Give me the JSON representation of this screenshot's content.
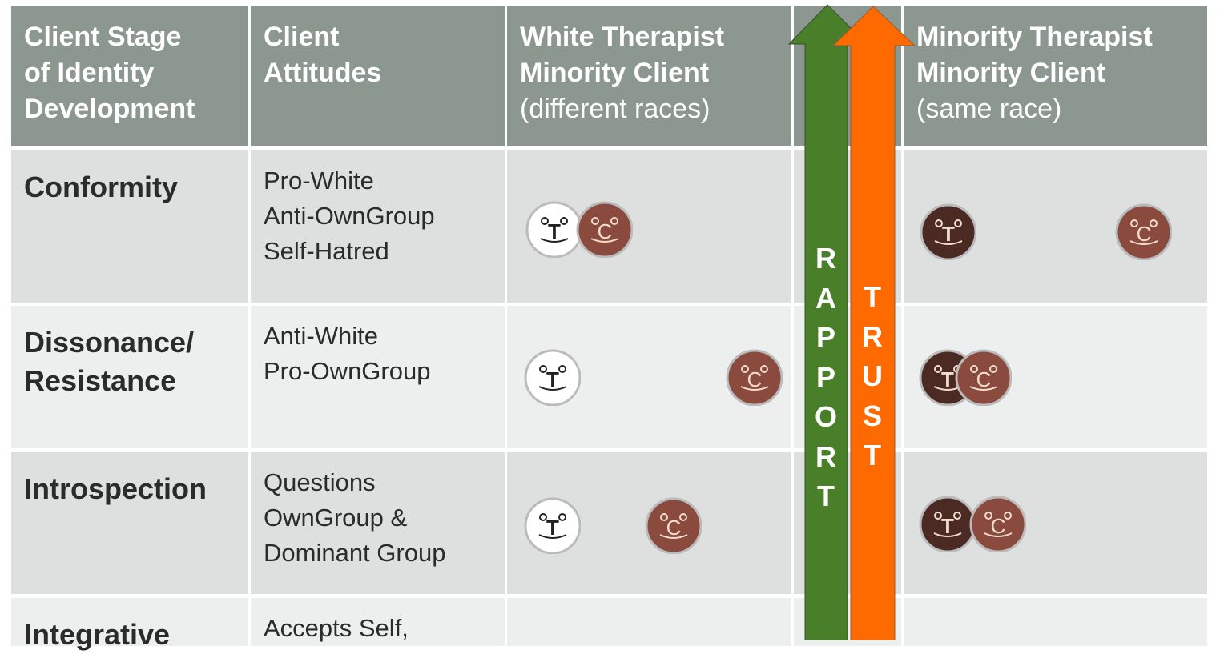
{
  "header": {
    "col1": [
      "Client Stage",
      "of Identity",
      "Development"
    ],
    "col2": [
      "Client",
      "Attitudes"
    ],
    "col3": [
      "White Therapist",
      "Minority Client"
    ],
    "col3_sub": "(different races)",
    "col5": [
      "Minority Therapist",
      "Minority Client"
    ],
    "col5_sub": "(same race)"
  },
  "rows": [
    {
      "stage": [
        "Conformity"
      ],
      "attitudes": [
        "Pro-White",
        "Anti-OwnGroup",
        "Self-Hatred"
      ]
    },
    {
      "stage": [
        "Dissonance/",
        "Resistance"
      ],
      "attitudes": [
        "Anti-White",
        "Pro-OwnGroup"
      ]
    },
    {
      "stage": [
        "Introspection"
      ],
      "attitudes": [
        "Questions",
        "OwnGroup &",
        "Dominant Group"
      ]
    },
    {
      "stage": [
        "Integrative"
      ],
      "attitudes": [
        "Accepts Self,"
      ]
    }
  ],
  "arrows": {
    "rapport": {
      "label": "RAPPORT",
      "color": "#4a7f2a"
    },
    "trust": {
      "label": "TRUST",
      "color": "#ff6a00"
    }
  },
  "faces": {
    "therapist_letter": "T",
    "client_letter": "C",
    "white_color": "#ffffff",
    "client_color": "#8b4a3e",
    "minority_therapist_color": "#4a2a22"
  }
}
